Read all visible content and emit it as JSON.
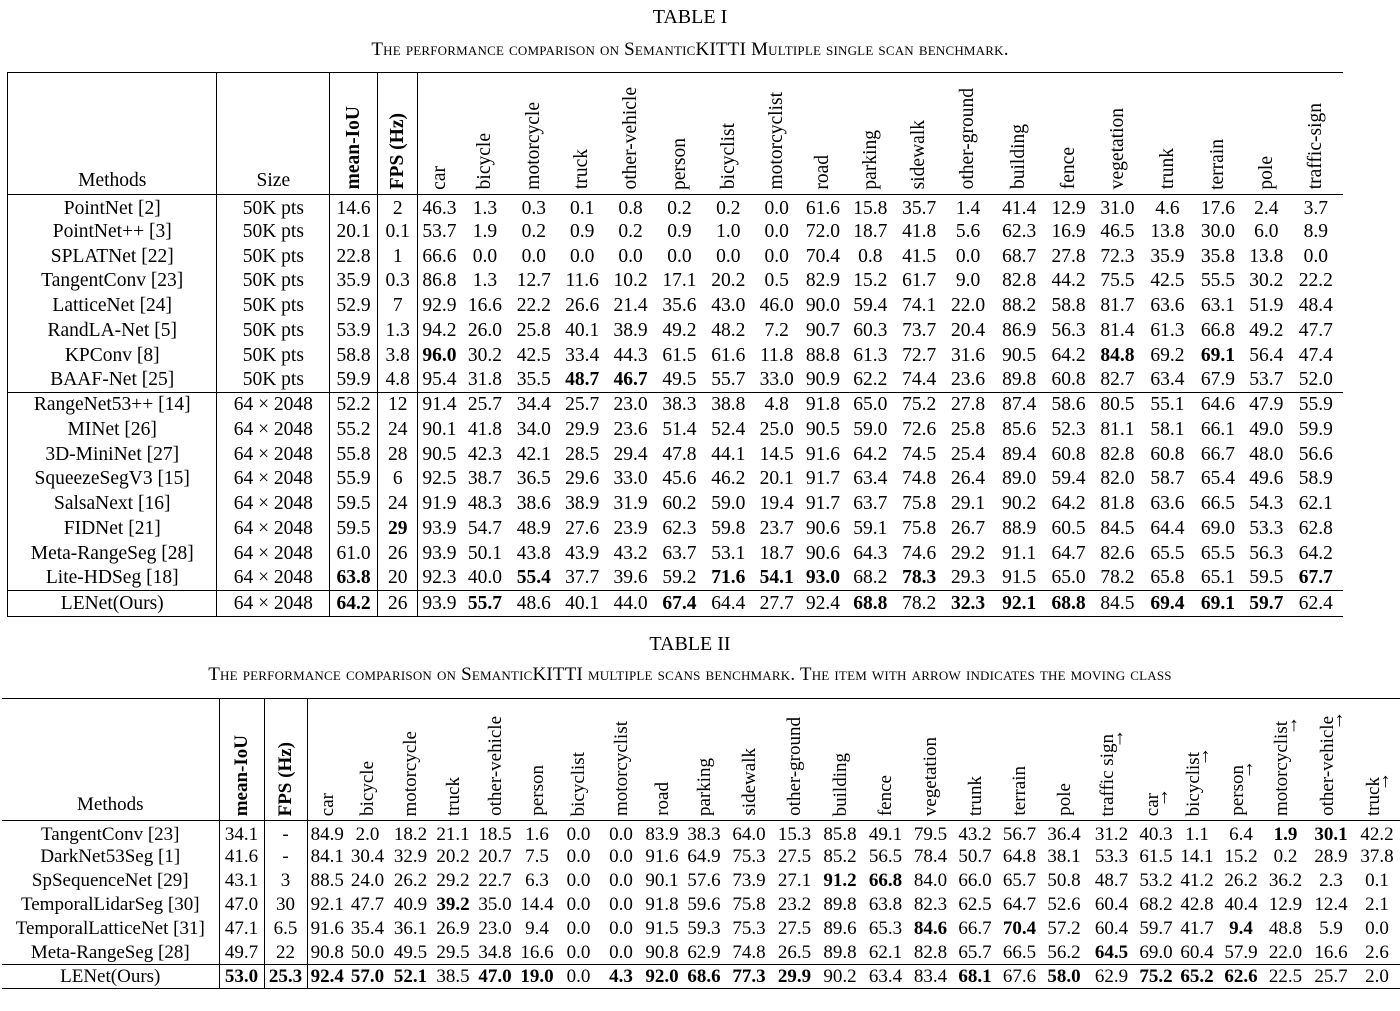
{
  "table1": {
    "label": "TABLE I",
    "caption": "The performance comparison on SemanticKITTI Multiple single scan benchmark.",
    "headers": [
      "Methods",
      "Size",
      "mean-IoU",
      "FPS (Hz)",
      "car",
      "bicycle",
      "motorcycle",
      "truck",
      "other-vehicle",
      "person",
      "bicyclist",
      "motorcyclist",
      "road",
      "parking",
      "sidewalk",
      "other-ground",
      "building",
      "fence",
      "vegetation",
      "trunk",
      "terrain",
      "pole",
      "traffic-sign"
    ],
    "groups": [
      [
        [
          "PointNet [2]",
          "50K pts",
          "14.6",
          "2",
          "46.3",
          "1.3",
          "0.3",
          "0.1",
          "0.8",
          "0.2",
          "0.2",
          "0.0",
          "61.6",
          "15.8",
          "35.7",
          "1.4",
          "41.4",
          "12.9",
          "31.0",
          "4.6",
          "17.6",
          "2.4",
          "3.7"
        ],
        [
          "PointNet++ [3]",
          "50K pts",
          "20.1",
          "0.1",
          "53.7",
          "1.9",
          "0.2",
          "0.9",
          "0.2",
          "0.9",
          "1.0",
          "0.0",
          "72.0",
          "18.7",
          "41.8",
          "5.6",
          "62.3",
          "16.9",
          "46.5",
          "13.8",
          "30.0",
          "6.0",
          "8.9"
        ],
        [
          "SPLATNet [22]",
          "50K pts",
          "22.8",
          "1",
          "66.6",
          "0.0",
          "0.0",
          "0.0",
          "0.0",
          "0.0",
          "0.0",
          "0.0",
          "70.4",
          "0.8",
          "41.5",
          "0.0",
          "68.7",
          "27.8",
          "72.3",
          "35.9",
          "35.8",
          "13.8",
          "0.0"
        ],
        [
          "TangentConv [23]",
          "50K pts",
          "35.9",
          "0.3",
          "86.8",
          "1.3",
          "12.7",
          "11.6",
          "10.2",
          "17.1",
          "20.2",
          "0.5",
          "82.9",
          "15.2",
          "61.7",
          "9.0",
          "82.8",
          "44.2",
          "75.5",
          "42.5",
          "55.5",
          "30.2",
          "22.2"
        ],
        [
          "LatticeNet [24]",
          "50K pts",
          "52.9",
          "7",
          "92.9",
          "16.6",
          "22.2",
          "26.6",
          "21.4",
          "35.6",
          "43.0",
          "46.0",
          "90.0",
          "59.4",
          "74.1",
          "22.0",
          "88.2",
          "58.8",
          "81.7",
          "63.6",
          "63.1",
          "51.9",
          "48.4"
        ],
        [
          "RandLA-Net [5]",
          "50K pts",
          "53.9",
          "1.3",
          "94.2",
          "26.0",
          "25.8",
          "40.1",
          "38.9",
          "49.2",
          "48.2",
          "7.2",
          "90.7",
          "60.3",
          "73.7",
          "20.4",
          "86.9",
          "56.3",
          "81.4",
          "61.3",
          "66.8",
          "49.2",
          "47.7"
        ],
        [
          "KPConv [8]",
          "50K pts",
          "58.8",
          "3.8",
          "96.0",
          "30.2",
          "42.5",
          "33.4",
          "44.3",
          "61.5",
          "61.6",
          "11.8",
          "88.8",
          "61.3",
          "72.7",
          "31.6",
          "90.5",
          "64.2",
          "84.8",
          "69.2",
          "69.1",
          "56.4",
          "47.4"
        ],
        [
          "BAAF-Net [25]",
          "50K pts",
          "59.9",
          "4.8",
          "95.4",
          "31.8",
          "35.5",
          "48.7",
          "46.7",
          "49.5",
          "55.7",
          "33.0",
          "90.9",
          "62.2",
          "74.4",
          "23.6",
          "89.8",
          "60.8",
          "82.7",
          "63.4",
          "67.9",
          "53.7",
          "52.0"
        ]
      ],
      [
        [
          "RangeNet53++ [14]",
          "64 × 2048",
          "52.2",
          "12",
          "91.4",
          "25.7",
          "34.4",
          "25.7",
          "23.0",
          "38.3",
          "38.8",
          "4.8",
          "91.8",
          "65.0",
          "75.2",
          "27.8",
          "87.4",
          "58.6",
          "80.5",
          "55.1",
          "64.6",
          "47.9",
          "55.9"
        ],
        [
          "MINet [26]",
          "64 × 2048",
          "55.2",
          "24",
          "90.1",
          "41.8",
          "34.0",
          "29.9",
          "23.6",
          "51.4",
          "52.4",
          "25.0",
          "90.5",
          "59.0",
          "72.6",
          "25.8",
          "85.6",
          "52.3",
          "81.1",
          "58.1",
          "66.1",
          "49.0",
          "59.9"
        ],
        [
          "3D-MiniNet [27]",
          "64 × 2048",
          "55.8",
          "28",
          "90.5",
          "42.3",
          "42.1",
          "28.5",
          "29.4",
          "47.8",
          "44.1",
          "14.5",
          "91.6",
          "64.2",
          "74.5",
          "25.4",
          "89.4",
          "60.8",
          "82.8",
          "60.8",
          "66.7",
          "48.0",
          "56.6"
        ],
        [
          "SqueezeSegV3 [15]",
          "64 × 2048",
          "55.9",
          "6",
          "92.5",
          "38.7",
          "36.5",
          "29.6",
          "33.0",
          "45.6",
          "46.2",
          "20.1",
          "91.7",
          "63.4",
          "74.8",
          "26.4",
          "89.0",
          "59.4",
          "82.0",
          "58.7",
          "65.4",
          "49.6",
          "58.9"
        ],
        [
          "SalsaNext [16]",
          "64 × 2048",
          "59.5",
          "24",
          "91.9",
          "48.3",
          "38.6",
          "38.9",
          "31.9",
          "60.2",
          "59.0",
          "19.4",
          "91.7",
          "63.7",
          "75.8",
          "29.1",
          "90.2",
          "64.2",
          "81.8",
          "63.6",
          "66.5",
          "54.3",
          "62.1"
        ],
        [
          "FIDNet [21]",
          "64 × 2048",
          "59.5",
          "29",
          "93.9",
          "54.7",
          "48.9",
          "27.6",
          "23.9",
          "62.3",
          "59.8",
          "23.7",
          "90.6",
          "59.1",
          "75.8",
          "26.7",
          "88.9",
          "60.5",
          "84.5",
          "64.4",
          "69.0",
          "53.3",
          "62.8"
        ],
        [
          "Meta-RangeSeg [28]",
          "64 × 2048",
          "61.0",
          "26",
          "93.9",
          "50.1",
          "43.8",
          "43.9",
          "43.2",
          "63.7",
          "53.1",
          "18.7",
          "90.6",
          "64.3",
          "74.6",
          "29.2",
          "91.1",
          "64.7",
          "82.6",
          "65.5",
          "65.5",
          "56.3",
          "64.2"
        ],
        [
          "Lite-HDSeg [18]",
          "64 × 2048",
          "63.8",
          "20",
          "92.3",
          "40.0",
          "55.4",
          "37.7",
          "39.6",
          "59.2",
          "71.6",
          "54.1",
          "93.0",
          "68.2",
          "78.3",
          "29.3",
          "91.5",
          "65.0",
          "78.2",
          "65.8",
          "65.1",
          "59.5",
          "67.7"
        ]
      ],
      [
        [
          "LENet(Ours)",
          "64 × 2048",
          "64.2",
          "26",
          "93.9",
          "55.7",
          "48.6",
          "40.1",
          "44.0",
          "67.4",
          "64.4",
          "27.7",
          "92.4",
          "68.8",
          "78.2",
          "32.3",
          "92.1",
          "68.8",
          "84.5",
          "69.4",
          "69.1",
          "59.7",
          "62.4"
        ]
      ]
    ],
    "bold": [
      [
        6,
        4
      ],
      [
        6,
        18
      ],
      [
        6,
        20
      ],
      [
        7,
        7
      ],
      [
        7,
        8
      ],
      [
        13,
        3
      ],
      [
        15,
        2
      ],
      [
        15,
        6
      ],
      [
        15,
        10
      ],
      [
        15,
        11
      ],
      [
        15,
        12
      ],
      [
        15,
        14
      ],
      [
        15,
        22
      ],
      [
        16,
        2
      ],
      [
        16,
        5
      ],
      [
        16,
        9
      ],
      [
        16,
        13
      ],
      [
        16,
        15
      ],
      [
        16,
        16
      ],
      [
        16,
        17
      ],
      [
        16,
        19
      ],
      [
        16,
        20
      ],
      [
        16,
        21
      ]
    ]
  },
  "table2": {
    "label": "TABLE II",
    "caption": "The performance comparison on SemanticKITTI multiple scans benchmark. The item with arrow indicates the moving class",
    "headers": [
      "Methods",
      "mean-IoU",
      "FPS (Hz)",
      "car",
      "bicycle",
      "motorcycle",
      "truck",
      "other-vehicle",
      "person",
      "bicyclist",
      "motorcyclist",
      "road",
      "parking",
      "sidewalk",
      "other-ground",
      "building",
      "fence",
      "vegetation",
      "trunk",
      "terrain",
      "pole",
      "traffic sign",
      "car",
      "bicyclist",
      "person",
      "motorcyclist",
      "other-vehicle",
      "truck"
    ],
    "moving_from": 21,
    "rows": [
      [
        "TangentConv [23]",
        "34.1",
        "-",
        "84.9",
        "2.0",
        "18.2",
        "21.1",
        "18.5",
        "1.6",
        "0.0",
        "0.0",
        "83.9",
        "38.3",
        "64.0",
        "15.3",
        "85.8",
        "49.1",
        "79.5",
        "43.2",
        "56.7",
        "36.4",
        "31.2",
        "40.3",
        "1.1",
        "6.4",
        "1.9",
        "30.1",
        "42.2"
      ],
      [
        "DarkNet53Seg [1]",
        "41.6",
        "-",
        "84.1",
        "30.4",
        "32.9",
        "20.2",
        "20.7",
        "7.5",
        "0.0",
        "0.0",
        "91.6",
        "64.9",
        "75.3",
        "27.5",
        "85.2",
        "56.5",
        "78.4",
        "50.7",
        "64.8",
        "38.1",
        "53.3",
        "61.5",
        "14.1",
        "15.2",
        "0.2",
        "28.9",
        "37.8"
      ],
      [
        "SpSequenceNet [29]",
        "43.1",
        "3",
        "88.5",
        "24.0",
        "26.2",
        "29.2",
        "22.7",
        "6.3",
        "0.0",
        "0.0",
        "90.1",
        "57.6",
        "73.9",
        "27.1",
        "91.2",
        "66.8",
        "84.0",
        "66.0",
        "65.7",
        "50.8",
        "48.7",
        "53.2",
        "41.2",
        "26.2",
        "36.2",
        "2.3",
        "0.1"
      ],
      [
        "TemporalLidarSeg [30]",
        "47.0",
        "30",
        "92.1",
        "47.7",
        "40.9",
        "39.2",
        "35.0",
        "14.4",
        "0.0",
        "0.0",
        "91.8",
        "59.6",
        "75.8",
        "23.2",
        "89.8",
        "63.8",
        "82.3",
        "62.5",
        "64.7",
        "52.6",
        "60.4",
        "68.2",
        "42.8",
        "40.4",
        "12.9",
        "12.4",
        "2.1"
      ],
      [
        "TemporalLatticeNet [31]",
        "47.1",
        "6.5",
        "91.6",
        "35.4",
        "36.1",
        "26.9",
        "23.0",
        "9.4",
        "0.0",
        "0.0",
        "91.5",
        "59.3",
        "75.3",
        "27.5",
        "89.6",
        "65.3",
        "84.6",
        "66.7",
        "70.4",
        "57.2",
        "60.4",
        "59.7",
        "41.7",
        "9.4",
        "48.8",
        "5.9",
        "0.0"
      ],
      [
        "Meta-RangeSeg [28]",
        "49.7",
        "22",
        "90.8",
        "50.0",
        "49.5",
        "29.5",
        "34.8",
        "16.6",
        "0.0",
        "0.0",
        "90.8",
        "62.9",
        "74.8",
        "26.5",
        "89.8",
        "62.1",
        "82.8",
        "65.7",
        "66.5",
        "56.2",
        "64.5",
        "69.0",
        "60.4",
        "57.9",
        "22.0",
        "16.6",
        "2.6"
      ],
      [
        "LENet(Ours)",
        "53.0",
        "25.3",
        "92.4",
        "57.0",
        "52.1",
        "38.5",
        "47.0",
        "19.0",
        "0.0",
        "4.3",
        "92.0",
        "68.6",
        "77.3",
        "29.9",
        "90.2",
        "63.4",
        "83.4",
        "68.1",
        "67.6",
        "58.0",
        "62.9",
        "75.2",
        "65.2",
        "62.6",
        "22.5",
        "25.7",
        "2.0"
      ]
    ],
    "bold": [
      [
        0,
        25
      ],
      [
        0,
        26
      ],
      [
        2,
        15
      ],
      [
        2,
        16
      ],
      [
        3,
        6
      ],
      [
        4,
        17
      ],
      [
        4,
        19
      ],
      [
        4,
        24
      ],
      [
        5,
        21
      ],
      [
        6,
        1
      ],
      [
        6,
        2
      ],
      [
        6,
        3
      ],
      [
        6,
        4
      ],
      [
        6,
        5
      ],
      [
        6,
        7
      ],
      [
        6,
        8
      ],
      [
        6,
        10
      ],
      [
        6,
        11
      ],
      [
        6,
        12
      ],
      [
        6,
        13
      ],
      [
        6,
        14
      ],
      [
        6,
        18
      ],
      [
        6,
        20
      ],
      [
        6,
        22
      ],
      [
        6,
        23
      ],
      [
        6,
        24
      ]
    ]
  }
}
